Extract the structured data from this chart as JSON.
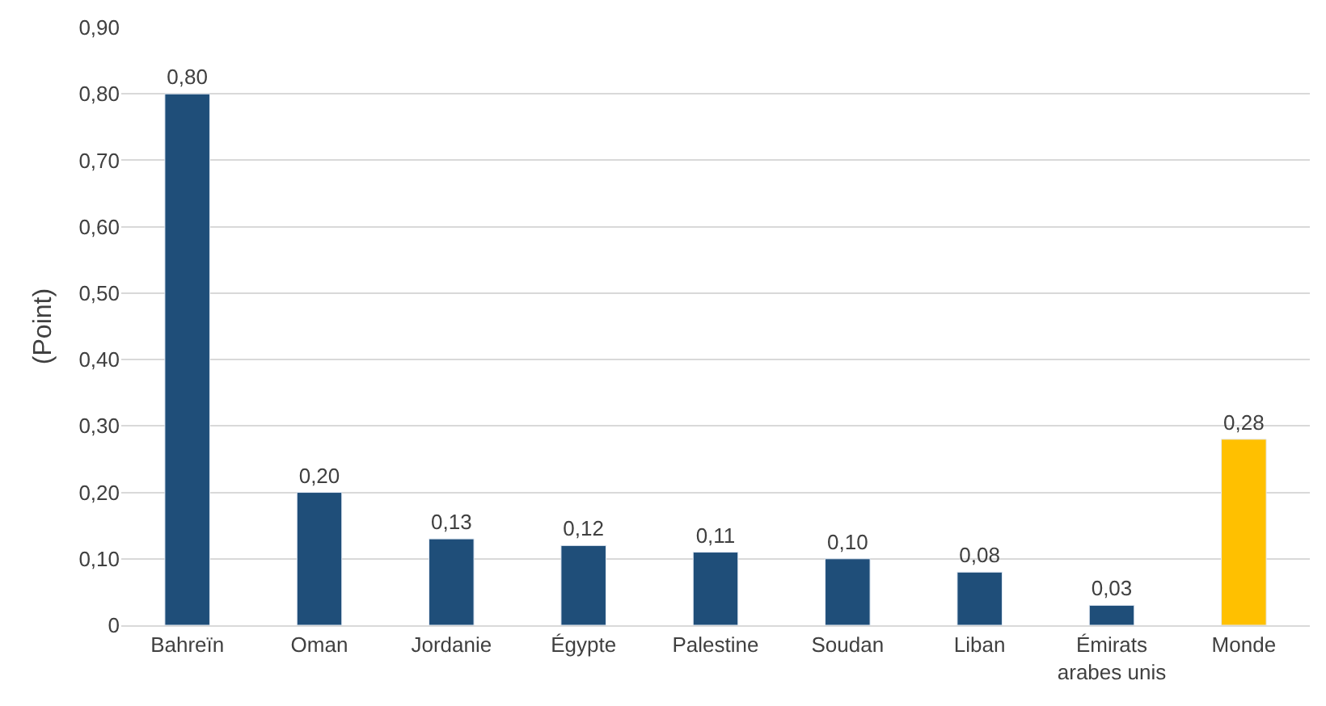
{
  "chart_data": {
    "type": "bar",
    "ylabel": "(Point)",
    "categories": [
      "Bahreïn",
      "Oman",
      "Jordanie",
      "Égypte",
      "Palestine",
      "Soudan",
      "Liban",
      "Émirats arabes unis",
      "Monde"
    ],
    "values": [
      0.8,
      0.2,
      0.13,
      0.12,
      0.11,
      0.1,
      0.08,
      0.03,
      0.28
    ],
    "colors": [
      "#1f4e79",
      "#1f4e79",
      "#1f4e79",
      "#1f4e79",
      "#1f4e79",
      "#1f4e79",
      "#1f4e79",
      "#1f4e79",
      "#ffc000"
    ],
    "value_labels": [
      "0,80",
      "0,20",
      "0,13",
      "0,12",
      "0,11",
      "0,10",
      "0,08",
      "0,03",
      "0,28"
    ],
    "ylim": [
      0,
      0.9
    ],
    "yticks": [
      0,
      {
        "value": 0.1,
        "label": "0,10"
      },
      {
        "value": 0.2,
        "label": "0,20"
      },
      {
        "value": 0.3,
        "label": "0,30"
      },
      {
        "value": 0.4,
        "label": "0,40"
      },
      {
        "value": 0.5,
        "label": "0,50"
      },
      {
        "value": 0.6,
        "label": "0,60"
      },
      {
        "value": 0.7,
        "label": "0,70"
      },
      {
        "value": 0.8,
        "label": "0,80"
      },
      {
        "value": 0.9,
        "label": "0,90"
      }
    ],
    "grid": "y",
    "legend": false
  }
}
